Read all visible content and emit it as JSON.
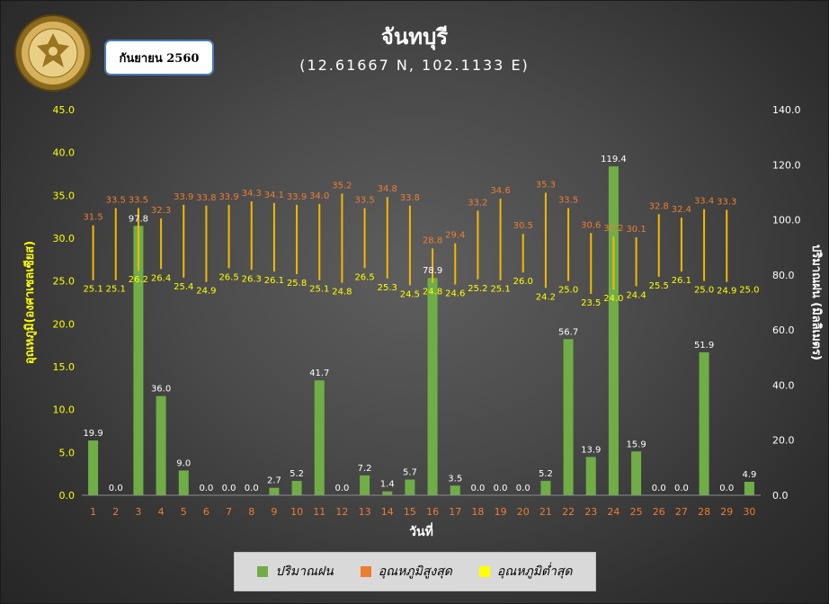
{
  "header": {
    "title": "จันทบุรี",
    "coordinates": "(12.61667 N, 102.1133 E)",
    "month_label": "กันยายน 2560",
    "logo_top_text": "กรมอุตุนิยมวิทยา",
    "logo_bottom_text": "METEOROLOGICAL DEPARTMENT"
  },
  "colors": {
    "rain": "#70ad47",
    "max_label": "#ed7d31",
    "min_label": "#ffff00",
    "range_line": "#f5b800",
    "left_axis": "#ffff00",
    "right_axis": "#ffffff",
    "x_tick": "#ed7d31"
  },
  "legend": {
    "rain": "ปริมาณฝน",
    "max_temp": "อุณหภูมิสูงสุด",
    "min_temp": "อุณหภูมิต่ำสุด"
  },
  "chart_data": {
    "type": "bar",
    "title": "จันทบุรี",
    "subtitle": "(12.61667 N, 102.1133 E)",
    "xlabel": "วันที่",
    "ylabel_left": "อุณหภูมิ(องศาเซลเซียส)",
    "ylabel_right": "ปริมาณฝน (มิลลิเมตร)",
    "ylim_left": [
      0,
      45
    ],
    "ylim_right": [
      0,
      140
    ],
    "yticks_left": [
      "0.0",
      "5.0",
      "10.0",
      "15.0",
      "20.0",
      "25.0",
      "30.0",
      "35.0",
      "40.0",
      "45.0"
    ],
    "yticks_right": [
      "0.0",
      "20.0",
      "40.0",
      "60.0",
      "80.0",
      "100.0",
      "120.0",
      "140.0"
    ],
    "legend_position": "bottom",
    "grid": false,
    "days": [
      1,
      2,
      3,
      4,
      5,
      6,
      7,
      8,
      9,
      10,
      11,
      12,
      13,
      14,
      15,
      16,
      17,
      18,
      19,
      20,
      21,
      22,
      23,
      24,
      25,
      26,
      27,
      28,
      29,
      30
    ],
    "series": [
      {
        "name": "ปริมาณฝน",
        "axis": "right",
        "values": [
          19.9,
          0.0,
          97.8,
          36.0,
          9.0,
          0.0,
          0.0,
          0.0,
          2.7,
          5.2,
          41.7,
          0.0,
          7.2,
          1.4,
          5.7,
          78.9,
          3.5,
          0.0,
          0.0,
          0.0,
          5.2,
          56.7,
          13.9,
          119.4,
          15.9,
          0.0,
          0.0,
          51.9,
          0.0,
          4.9
        ]
      },
      {
        "name": "อุณหภูมิสูงสุด",
        "axis": "left",
        "values": [
          31.5,
          33.5,
          33.5,
          32.3,
          33.9,
          33.8,
          33.9,
          34.3,
          34.1,
          33.9,
          34.0,
          35.2,
          33.5,
          34.8,
          33.8,
          28.8,
          29.4,
          33.2,
          34.6,
          30.5,
          35.3,
          33.5,
          30.6,
          30.2,
          30.1,
          32.8,
          32.4,
          33.4,
          33.3,
          null
        ]
      },
      {
        "name": "อุณหภูมิต่ำสุด",
        "axis": "left",
        "values": [
          25.1,
          25.1,
          26.2,
          26.4,
          25.4,
          24.9,
          26.5,
          26.3,
          26.1,
          25.8,
          25.1,
          24.8,
          26.5,
          25.3,
          24.5,
          24.8,
          24.6,
          25.2,
          25.1,
          26.0,
          24.2,
          25.0,
          23.5,
          24.0,
          24.4,
          25.5,
          26.1,
          25.0,
          24.9,
          25.0
        ]
      }
    ]
  }
}
